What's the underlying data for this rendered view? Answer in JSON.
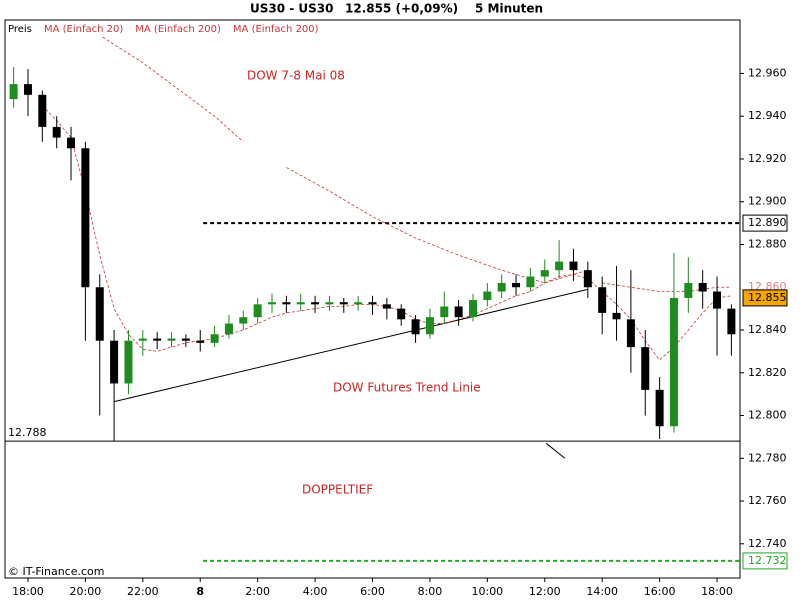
{
  "chart_data": {
    "type": "candlestick",
    "title": "US30 - US30",
    "subtitle": "12.855 (+0,09%)",
    "interval": "5 Minuten",
    "price_label": "Preis",
    "copyright": "© IT-Finance.com",
    "annotations": [
      "DOW 7-8 Mai 08",
      "DOW Futures Trend Linie",
      "DOPPELTIEF"
    ],
    "up_color": "#1e8c1e",
    "down_color": "#000000",
    "xlim": [
      -6.8,
      18.8
    ],
    "ylim": [
      12.724,
      12.985
    ],
    "xticks": [
      {
        "value": -6,
        "label": "18:00"
      },
      {
        "value": -4,
        "label": "20:00"
      },
      {
        "value": -2,
        "label": "22:00"
      },
      {
        "value": 0,
        "label": "8"
      },
      {
        "value": 2,
        "label": "2:00"
      },
      {
        "value": 4,
        "label": "4:00"
      },
      {
        "value": 6,
        "label": "6:00"
      },
      {
        "value": 8,
        "label": "8:00"
      },
      {
        "value": 10,
        "label": "10:00"
      },
      {
        "value": 12,
        "label": "12:00"
      },
      {
        "value": 14,
        "label": "14:00"
      },
      {
        "value": 16,
        "label": "16:00"
      },
      {
        "value": 18,
        "label": "18:00"
      }
    ],
    "yticks": [
      {
        "value": 12.74,
        "label": "12.740"
      },
      {
        "value": 12.76,
        "label": "12.760"
      },
      {
        "value": 12.78,
        "label": "12.780"
      },
      {
        "value": 12.8,
        "label": "12.800"
      },
      {
        "value": 12.82,
        "label": "12.820"
      },
      {
        "value": 12.84,
        "label": "12.840"
      },
      {
        "value": 12.88,
        "label": "12.880"
      },
      {
        "value": 12.9,
        "label": "12.900"
      },
      {
        "value": 12.92,
        "label": "12.920"
      },
      {
        "value": 12.94,
        "label": "12.940"
      },
      {
        "value": 12.96,
        "label": "12.960"
      }
    ],
    "x": [
      -6.5,
      -6,
      -5.5,
      -5,
      -4.5,
      -4,
      -3.5,
      -3,
      -2.5,
      -2,
      -1.5,
      -1,
      -0.5,
      0,
      0.5,
      1,
      1.5,
      2,
      2.5,
      3,
      3.5,
      4,
      4.5,
      5,
      5.5,
      6,
      6.5,
      7,
      7.5,
      8,
      8.5,
      9,
      9.5,
      10,
      10.5,
      11,
      11.5,
      12,
      12.5,
      13,
      13.5,
      14,
      14.5,
      15,
      15.5,
      16,
      16.5,
      17,
      17.5,
      18,
      18.5
    ],
    "open": [
      12.948,
      12.955,
      12.95,
      12.935,
      12.93,
      12.925,
      12.86,
      12.835,
      12.815,
      12.835,
      12.836,
      12.835,
      12.836,
      12.835,
      12.834,
      12.838,
      12.843,
      12.846,
      12.852,
      12.853,
      12.852,
      12.853,
      12.852,
      12.853,
      12.852,
      12.853,
      12.852,
      12.85,
      12.845,
      12.838,
      12.846,
      12.851,
      12.846,
      12.854,
      12.858,
      12.862,
      12.86,
      12.865,
      12.868,
      12.872,
      12.868,
      12.86,
      12.848,
      12.845,
      12.832,
      12.812,
      12.795,
      12.855,
      12.862,
      12.858,
      12.85
    ],
    "high": [
      12.963,
      12.962,
      12.952,
      12.94,
      12.935,
      12.928,
      12.866,
      12.84,
      12.84,
      12.84,
      12.839,
      12.839,
      12.838,
      12.84,
      12.842,
      12.847,
      12.849,
      12.855,
      12.857,
      12.856,
      12.857,
      12.856,
      12.856,
      12.855,
      12.856,
      12.856,
      12.855,
      12.852,
      12.847,
      12.85,
      12.858,
      12.854,
      12.857,
      12.862,
      12.866,
      12.866,
      12.869,
      12.873,
      12.882,
      12.878,
      12.872,
      12.865,
      12.87,
      12.868,
      12.84,
      12.818,
      12.876,
      12.874,
      12.868,
      12.865,
      12.852
    ],
    "low": [
      12.944,
      12.94,
      12.928,
      12.925,
      12.91,
      12.835,
      12.8,
      12.788,
      12.81,
      12.828,
      12.831,
      12.832,
      12.832,
      12.83,
      12.832,
      12.836,
      12.84,
      12.843,
      12.848,
      12.848,
      12.849,
      12.848,
      12.849,
      12.848,
      12.849,
      12.847,
      12.845,
      12.842,
      12.834,
      12.836,
      12.843,
      12.842,
      12.844,
      12.851,
      12.855,
      12.856,
      12.858,
      12.862,
      12.864,
      12.863,
      12.855,
      12.838,
      12.835,
      12.82,
      12.8,
      12.789,
      12.792,
      12.848,
      12.85,
      12.828,
      12.828
    ],
    "close": [
      12.955,
      12.95,
      12.935,
      12.93,
      12.925,
      12.86,
      12.835,
      12.815,
      12.835,
      12.836,
      12.835,
      12.836,
      12.835,
      12.834,
      12.838,
      12.843,
      12.846,
      12.852,
      12.853,
      12.852,
      12.853,
      12.852,
      12.853,
      12.852,
      12.853,
      12.852,
      12.85,
      12.845,
      12.838,
      12.846,
      12.851,
      12.846,
      12.854,
      12.858,
      12.862,
      12.86,
      12.865,
      12.868,
      12.872,
      12.868,
      12.86,
      12.848,
      12.845,
      12.832,
      12.812,
      12.795,
      12.855,
      12.862,
      12.858,
      12.85,
      12.838
    ],
    "series": [
      {
        "name": "MA (Einfach 20)",
        "color": "#cc3333",
        "values": [
          null,
          null,
          12.945,
          12.938,
          12.93,
          12.905,
          12.875,
          12.85,
          12.838,
          12.831,
          12.83,
          12.832,
          12.834,
          12.835,
          12.836,
          12.838,
          12.84,
          12.843,
          12.846,
          12.848,
          12.849,
          12.85,
          12.851,
          12.851,
          12.852,
          12.852,
          12.851,
          12.849,
          12.845,
          12.843,
          12.843,
          12.845,
          12.847,
          12.85,
          12.853,
          12.856,
          12.858,
          12.862,
          12.865,
          12.866,
          12.864,
          12.858,
          12.852,
          12.845,
          12.835,
          12.826,
          12.832,
          12.84,
          12.848,
          12.855,
          12.856
        ]
      },
      {
        "name": "MA (Einfach 200)",
        "color": "#cc3333",
        "x": [
          -3.4,
          -2,
          -0.5,
          0.5,
          1.5,
          2.2,
          3,
          4.5,
          6,
          7.5,
          9,
          10.5,
          12,
          13.5
        ],
        "values": [
          12.977,
          12.965,
          12.95,
          12.94,
          12.928,
          null,
          12.916,
          12.905,
          12.893,
          12.883,
          12.875,
          12.868,
          12.862,
          12.868
        ]
      },
      {
        "name": "MA (Einfach 200)",
        "color": "#cc3333",
        "x": [
          14,
          15,
          16,
          17,
          18,
          18.5
        ],
        "values": [
          12.862,
          12.86,
          12.858,
          12.858,
          12.86,
          12.86
        ]
      }
    ],
    "levels": [
      {
        "value": 12.89,
        "label": "12.890",
        "color": "#000000",
        "style": "dashed",
        "start": 0.1,
        "tag": "box"
      },
      {
        "value": 12.86,
        "label": "12.860",
        "color": "#e08080",
        "tag": "text"
      },
      {
        "value": 12.855,
        "label": "12.855",
        "color": "#f7a600",
        "tag": "fill"
      },
      {
        "value": 12.732,
        "label": "12.732",
        "color": "#22aa22",
        "style": "dashed",
        "start": 0.1,
        "tag": "box"
      },
      {
        "value": 12.788,
        "label": "12.788",
        "color": "#000000",
        "style": "solid",
        "start": -6.8,
        "tag": "left"
      }
    ],
    "lines": [
      {
        "x": [
          -3,
          13.5
        ],
        "y": [
          12.8065,
          12.859
        ],
        "color": "#000000"
      },
      {
        "x": [
          12.05,
          12.7
        ],
        "y": [
          12.787,
          12.78
        ],
        "color": "#000000"
      }
    ]
  }
}
